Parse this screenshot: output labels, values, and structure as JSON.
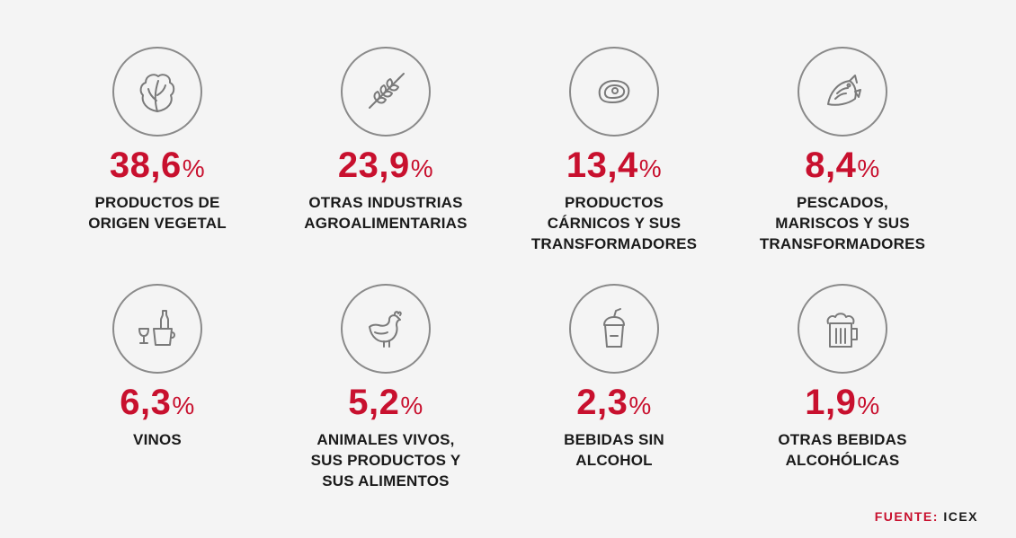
{
  "stats": [
    {
      "value": "38,6",
      "unit": "%",
      "label": "PRODUCTOS DE\nORIGEN VEGETAL",
      "icon": "lettuce-icon"
    },
    {
      "value": "23,9",
      "unit": "%",
      "label": "OTRAS INDUSTRIAS\nAGROALIMENTARIAS",
      "icon": "wheat-icon"
    },
    {
      "value": "13,4",
      "unit": "%",
      "label": "PRODUCTOS\nCÁRNICOS Y SUS\nTRANSFORMADORES",
      "icon": "steak-icon"
    },
    {
      "value": "8,4",
      "unit": "%",
      "label": "PESCADOS,\nMARISCOS Y SUS\nTRANSFORMADORES",
      "icon": "fish-icon"
    },
    {
      "value": "6,3",
      "unit": "%",
      "label": "VINOS",
      "icon": "wine-bucket-icon"
    },
    {
      "value": "5,2",
      "unit": "%",
      "label": "ANIMALES VIVOS,\nSUS PRODUCTOS Y\nSUS ALIMENTOS",
      "icon": "chicken-icon"
    },
    {
      "value": "2,3",
      "unit": "%",
      "label": "BEBIDAS SIN\nALCOHOL",
      "icon": "soft-drink-icon"
    },
    {
      "value": "1,9",
      "unit": "%",
      "label": "OTRAS BEBIDAS\nALCOHÓLICAS",
      "icon": "beer-mug-icon"
    }
  ],
  "source": {
    "key": "FUENTE:",
    "value": "ICEX"
  },
  "colors": {
    "accent": "#c8102e",
    "text": "#1a1a1a",
    "icon": "#7a7a7a",
    "background": "#f4f4f4"
  }
}
